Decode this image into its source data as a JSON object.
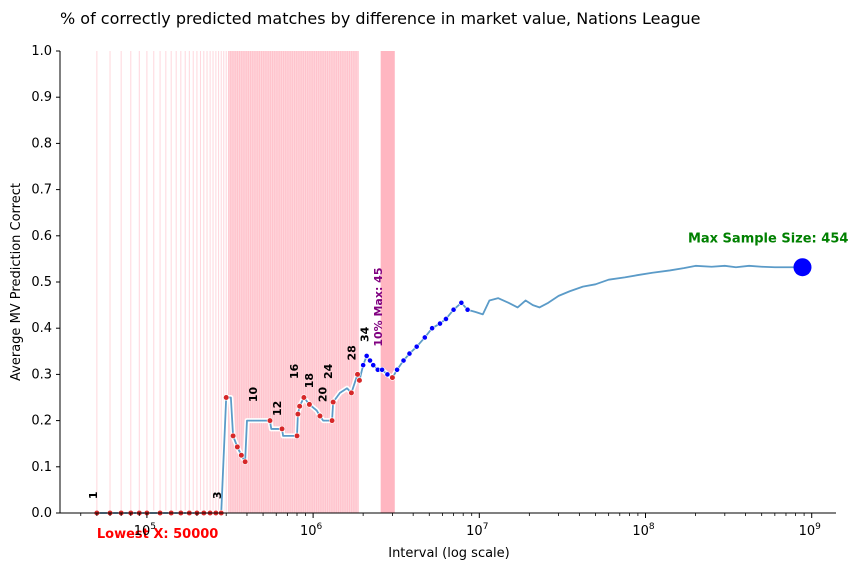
{
  "chart_data": {
    "type": "line",
    "title": "% of correctly predicted matches by difference in market value, Nations League",
    "xlabel": "Interval (log scale)",
    "ylabel": "Average MV Prediction Correct",
    "xscale": "log",
    "xlim": [
      30000,
      1400000000
    ],
    "ylim": [
      0,
      1.0
    ],
    "grid": false,
    "y_ticks": [
      "0.0",
      "0.1",
      "0.2",
      "0.3",
      "0.4",
      "0.5",
      "0.6",
      "0.7",
      "0.8",
      "0.9",
      "1.0"
    ],
    "x_ticks": [
      {
        "base": "10",
        "exp": "5",
        "value": 100000
      },
      {
        "base": "10",
        "exp": "6",
        "value": 1000000
      },
      {
        "base": "10",
        "exp": "7",
        "value": 10000000
      },
      {
        "base": "10",
        "exp": "8",
        "value": 100000000
      },
      {
        "base": "10",
        "exp": "9",
        "value": 1000000000
      }
    ],
    "series": [
      {
        "color": "#5b9bc8",
        "points": [
          [
            50000,
            0
          ],
          [
            60000,
            0
          ],
          [
            70000,
            0
          ],
          [
            80000,
            0
          ],
          [
            90000,
            0
          ],
          [
            100000,
            0
          ],
          [
            120000,
            0
          ],
          [
            140000,
            0
          ],
          [
            160000,
            0
          ],
          [
            180000,
            0
          ],
          [
            200000,
            0
          ],
          [
            220000,
            0
          ],
          [
            240000,
            0
          ],
          [
            260000,
            0
          ],
          [
            280000,
            0
          ],
          [
            300000,
            0.25
          ],
          [
            320000,
            0.25
          ],
          [
            330000,
            0.167
          ],
          [
            350000,
            0.143
          ],
          [
            370000,
            0.125
          ],
          [
            390000,
            0.111
          ],
          [
            400000,
            0.2
          ],
          [
            450000,
            0.2
          ],
          [
            550000,
            0.2
          ],
          [
            560000,
            0.182
          ],
          [
            650000,
            0.182
          ],
          [
            660000,
            0.167
          ],
          [
            800000,
            0.167
          ],
          [
            810000,
            0.214
          ],
          [
            830000,
            0.231
          ],
          [
            880000,
            0.25
          ],
          [
            950000,
            0.235
          ],
          [
            1050000,
            0.222
          ],
          [
            1100000,
            0.21
          ],
          [
            1150000,
            0.2
          ],
          [
            1300000,
            0.2
          ],
          [
            1320000,
            0.24
          ],
          [
            1450000,
            0.26
          ],
          [
            1600000,
            0.27
          ],
          [
            1700000,
            0.26
          ],
          [
            1850000,
            0.3
          ],
          [
            1900000,
            0.287
          ],
          [
            2000000,
            0.32
          ],
          [
            2100000,
            0.34
          ],
          [
            2200000,
            0.33
          ],
          [
            2300000,
            0.32
          ],
          [
            2450000,
            0.31
          ],
          [
            2600000,
            0.31
          ],
          [
            2800000,
            0.3
          ],
          [
            3000000,
            0.293
          ],
          [
            3200000,
            0.31
          ],
          [
            3500000,
            0.33
          ],
          [
            3800000,
            0.345
          ],
          [
            4200000,
            0.36
          ],
          [
            4700000,
            0.38
          ],
          [
            5200000,
            0.4
          ],
          [
            5800000,
            0.41
          ],
          [
            6300000,
            0.42
          ],
          [
            7000000,
            0.44
          ],
          [
            7800000,
            0.455
          ],
          [
            8500000,
            0.44
          ],
          [
            9500000,
            0.435
          ],
          [
            10500000,
            0.43
          ],
          [
            11500000,
            0.46
          ],
          [
            13000000,
            0.465
          ],
          [
            15000000,
            0.455
          ],
          [
            17000000,
            0.445
          ],
          [
            19000000,
            0.46
          ],
          [
            21000000,
            0.45
          ],
          [
            23000000,
            0.445
          ],
          [
            26000000,
            0.455
          ],
          [
            30000000,
            0.47
          ],
          [
            35000000,
            0.48
          ],
          [
            42000000,
            0.49
          ],
          [
            50000000,
            0.495
          ],
          [
            60000000,
            0.505
          ],
          [
            75000000,
            0.51
          ],
          [
            90000000,
            0.515
          ],
          [
            110000000,
            0.52
          ],
          [
            140000000,
            0.525
          ],
          [
            170000000,
            0.53
          ],
          [
            200000000,
            0.535
          ],
          [
            250000000,
            0.533
          ],
          [
            300000000,
            0.535
          ],
          [
            350000000,
            0.532
          ],
          [
            420000000,
            0.535
          ],
          [
            500000000,
            0.533
          ],
          [
            600000000,
            0.532
          ],
          [
            700000000,
            0.532
          ],
          [
            850000000,
            0.532
          ]
        ]
      }
    ],
    "red_markers": [
      [
        50000,
        0
      ],
      [
        60000,
        0
      ],
      [
        70000,
        0
      ],
      [
        80000,
        0
      ],
      [
        90000,
        0
      ],
      [
        100000,
        0
      ],
      [
        120000,
        0
      ],
      [
        140000,
        0
      ],
      [
        160000,
        0
      ],
      [
        180000,
        0
      ],
      [
        200000,
        0
      ],
      [
        220000,
        0
      ],
      [
        240000,
        0
      ],
      [
        260000,
        0
      ],
      [
        280000,
        0
      ],
      [
        300000,
        0.25
      ],
      [
        330000,
        0.167
      ],
      [
        350000,
        0.143
      ],
      [
        370000,
        0.125
      ],
      [
        390000,
        0.111
      ],
      [
        550000,
        0.2
      ],
      [
        650000,
        0.182
      ],
      [
        800000,
        0.167
      ],
      [
        810000,
        0.214
      ],
      [
        830000,
        0.231
      ],
      [
        880000,
        0.25
      ],
      [
        950000,
        0.235
      ],
      [
        1100000,
        0.21
      ],
      [
        1300000,
        0.2
      ],
      [
        1320000,
        0.24
      ],
      [
        1700000,
        0.26
      ],
      [
        1850000,
        0.3
      ],
      [
        1900000,
        0.287
      ],
      [
        3000000,
        0.293
      ]
    ],
    "sample_labels": [
      {
        "text": "1",
        "x": 50000,
        "y": 0.03
      },
      {
        "text": "3",
        "x": 280000,
        "y": 0.03
      },
      {
        "text": "10",
        "x": 460000,
        "y": 0.24
      },
      {
        "text": "12",
        "x": 640000,
        "y": 0.21
      },
      {
        "text": "16",
        "x": 810000,
        "y": 0.29
      },
      {
        "text": "18",
        "x": 1000000,
        "y": 0.27
      },
      {
        "text": "20",
        "x": 1200000,
        "y": 0.24
      },
      {
        "text": "24",
        "x": 1300000,
        "y": 0.29
      },
      {
        "text": "28",
        "x": 1800000,
        "y": 0.33
      },
      {
        "text": "34",
        "x": 2150000,
        "y": 0.37
      }
    ],
    "annotations": {
      "max_label": "10% Max: 45",
      "max_x": 2600000,
      "max_label_y": 0.36,
      "sample_size_label": "Max Sample Size: 454",
      "sample_size_x": 180000000,
      "sample_size_y": 0.585,
      "max_point": [
        880000000,
        0.532
      ],
      "lowest_label": "Lowest X: 50000",
      "lowest_x": 50000
    },
    "shading": {
      "dense_band": [
        310000,
        1870000
      ],
      "solid_band": [
        2550000,
        3100000
      ],
      "sparse_lines": [
        50000,
        60000,
        70000,
        80000,
        90000,
        100000,
        110000,
        120000,
        130000,
        140000,
        150000,
        160000,
        170000,
        180000,
        190000,
        200000,
        210000,
        220000,
        230000,
        240000,
        250000,
        260000,
        270000,
        280000,
        290000,
        300000
      ]
    },
    "colors": {
      "line": "#5b9bc8",
      "shading": "#ffb6c1",
      "red_marker": "#d62728",
      "blue_marker": "#0000ff",
      "sample_size_text": "#008000",
      "max_text": "#800080",
      "lowest_text": "#ff0000"
    }
  }
}
